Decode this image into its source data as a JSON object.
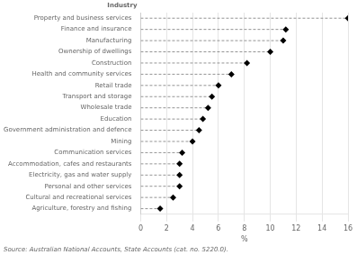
{
  "chart_data": {
    "type": "dot",
    "orientation": "horizontal",
    "xlabel": "%",
    "annotations": [
      "Industry",
      "Source: Australian National Accounts, State Accounts (cat. no. 5220.0)."
    ],
    "categories": [
      "Property and business services",
      "Finance and insurance",
      "Manufacturing",
      "Ownership of dwellings",
      "Construction",
      "Health and community services",
      "Retail trade",
      "Transport and storage",
      "Wholesale trade",
      "Education",
      "Government administration and defence",
      "Mining",
      "Communication services",
      "Accommodation, cafes and restaurants",
      "Electricity, gas and water supply",
      "Personal and other services",
      "Cultural and recreational services",
      "Agriculture, forestry and fishing"
    ],
    "values": [
      16.0,
      11.2,
      11.0,
      10.0,
      8.2,
      7.0,
      6.0,
      5.5,
      5.2,
      4.8,
      4.5,
      4.0,
      3.2,
      3.0,
      3.0,
      3.0,
      2.5,
      1.5
    ],
    "color": "#000000",
    "marker": "diamond",
    "line_style": "dashed",
    "xlim": [
      0,
      16
    ],
    "xticks": [
      0,
      2,
      4,
      6,
      8,
      10,
      12,
      14,
      16
    ],
    "grid": true
  }
}
